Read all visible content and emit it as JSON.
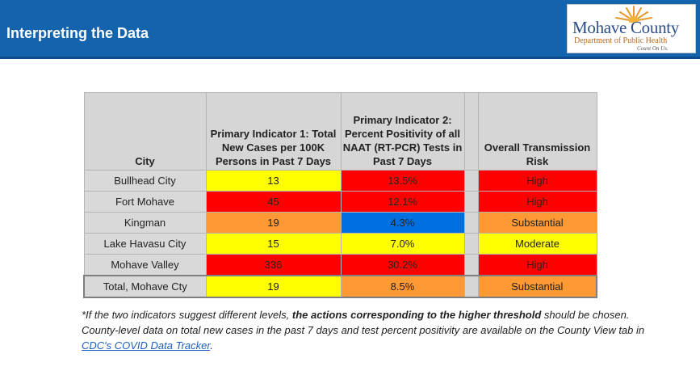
{
  "header": {
    "title": "Interpreting the Data",
    "background_color": "#1463ad"
  },
  "logo": {
    "name": "Mohave County",
    "department": "Department of Public Health",
    "tagline": "Count On Us."
  },
  "table": {
    "columns": {
      "city": "City",
      "indicator1": "Primary Indicator 1: Total New Cases per 100K Persons in Past 7 Days",
      "indicator2": "Primary Indicator 2: Percent Positivity of all NAAT (RT-PCR) Tests in Past 7 Days",
      "risk": "Overall Transmission Risk"
    },
    "rows": [
      {
        "city": "Bullhead City",
        "cases": "13",
        "positivity": "13.5%",
        "risk": "High",
        "cases_color": "#ffff00",
        "positivity_color": "#ff0000",
        "risk_color": "#ff0000"
      },
      {
        "city": "Fort Mohave",
        "cases": "45",
        "positivity": "12.1%",
        "risk": "High",
        "cases_color": "#ff0000",
        "positivity_color": "#ff0000",
        "risk_color": "#ff0000"
      },
      {
        "city": "Kingman",
        "cases": "19",
        "positivity": "4.3%",
        "risk": "Substantial",
        "cases_color": "#ff9933",
        "positivity_color": "#0070e0",
        "risk_color": "#ff9933"
      },
      {
        "city": "Lake Havasu City",
        "cases": "15",
        "positivity": "7.0%",
        "risk": "Moderate",
        "cases_color": "#ffff00",
        "positivity_color": "#ffff00",
        "risk_color": "#ffff00"
      },
      {
        "city": "Mohave Valley",
        "cases": "336",
        "positivity": "30.2%",
        "risk": "High",
        "cases_color": "#ff0000",
        "positivity_color": "#ff0000",
        "risk_color": "#ff0000"
      },
      {
        "city": "Total, Mohave Cty",
        "cases": "19",
        "positivity": "8.5%",
        "risk": "Substantial",
        "cases_color": "#ffff00",
        "positivity_color": "#ff9933",
        "risk_color": "#ff9933"
      }
    ]
  },
  "footnote": {
    "part1": "*If the two indicators suggest different levels, ",
    "bold": "the actions corresponding to the higher threshold",
    "part2": " should be chosen. County-level data on total new cases in the past 7 days and test percent positivity are available on the County View tab in ",
    "link": "CDC's COVID Data Tracker",
    "part3": "."
  }
}
